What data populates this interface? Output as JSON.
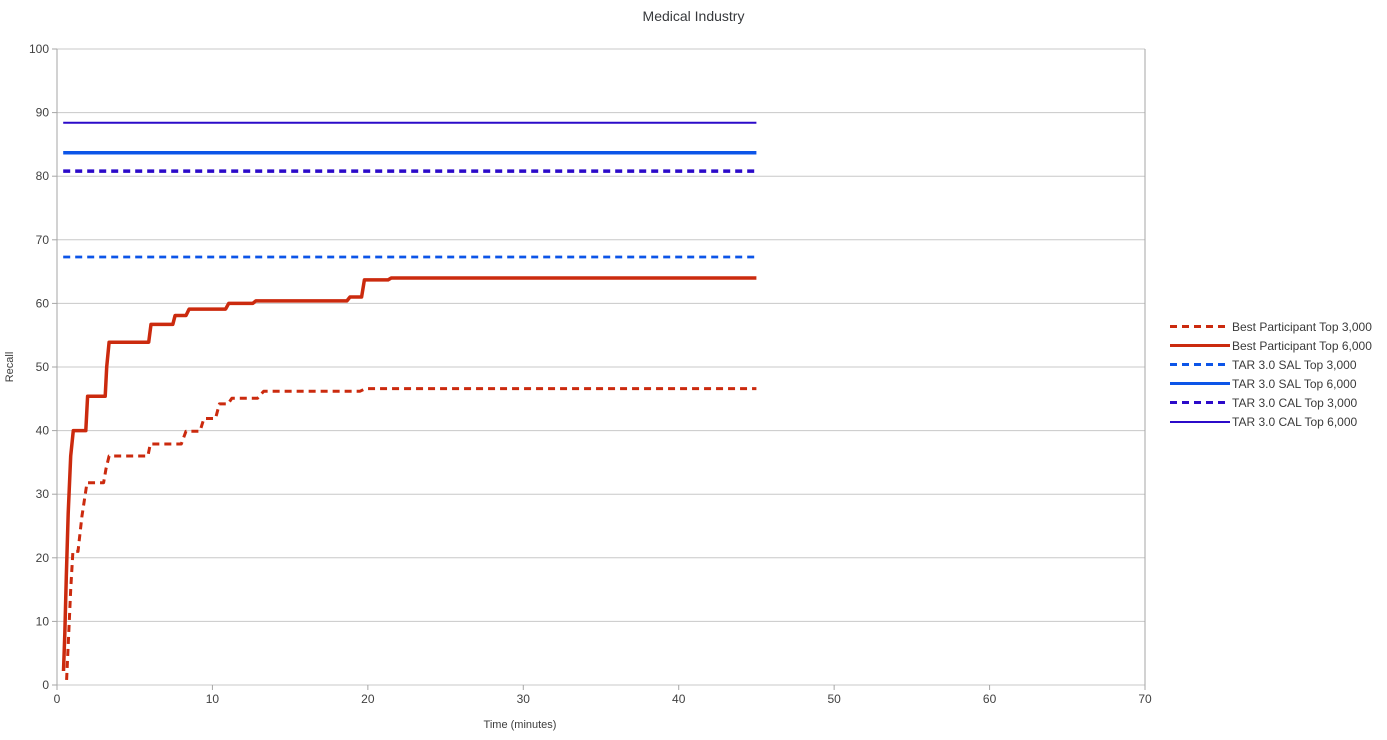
{
  "title": "Medical Industry",
  "axes": {
    "x": {
      "title": "Time (minutes)",
      "lim": [
        0,
        70
      ],
      "ticks": [
        0,
        10,
        20,
        30,
        40,
        50,
        60,
        70
      ]
    },
    "y": {
      "title": "Recall",
      "lim": [
        0,
        100
      ],
      "ticks": [
        0,
        10,
        20,
        30,
        40,
        50,
        60,
        70,
        80,
        90,
        100
      ]
    }
  },
  "colors": {
    "best_participant_red": "#CB2A0E",
    "tar_sal_blue": "#0C55E8",
    "tar_cal_indigo": "#2B0AC9",
    "gridline": "#C8C8C8",
    "axis": "#A6A6A6",
    "text": "#3C3C3C"
  },
  "chart_data": {
    "type": "line",
    "title": "Medical Industry",
    "xlabel": "Time (minutes)",
    "ylabel": "Recall",
    "xlim": [
      0,
      70
    ],
    "ylim": [
      0,
      100
    ],
    "grid": "horizontal",
    "legend_position": "right-middle",
    "series": [
      {
        "name": "Best Participant Top 3,000",
        "color": "#CB2A0E",
        "style": "dashed",
        "width": 3,
        "points": [
          [
            0.62,
            0.8
          ],
          [
            0.75,
            8
          ],
          [
            0.88,
            15
          ],
          [
            1.02,
            21
          ],
          [
            1.35,
            21
          ],
          [
            1.6,
            26.5
          ],
          [
            1.93,
            31.8
          ],
          [
            3.0,
            31.8
          ],
          [
            3.15,
            34
          ],
          [
            3.35,
            36
          ],
          [
            5.85,
            36
          ],
          [
            6.0,
            37.9
          ],
          [
            8.0,
            37.9
          ],
          [
            8.3,
            39.9
          ],
          [
            9.2,
            39.9
          ],
          [
            9.45,
            41.9
          ],
          [
            10.2,
            41.9
          ],
          [
            10.45,
            44.2
          ],
          [
            11.0,
            44.2
          ],
          [
            11.25,
            45.1
          ],
          [
            12.9,
            45.1
          ],
          [
            13.3,
            46.2
          ],
          [
            19.5,
            46.2
          ],
          [
            19.85,
            46.6
          ],
          [
            45,
            46.6
          ]
        ]
      },
      {
        "name": "Best Participant Top 6,000",
        "color": "#CB2A0E",
        "style": "solid",
        "width": 3.5,
        "points": [
          [
            0.42,
            2.2
          ],
          [
            0.5,
            8
          ],
          [
            0.6,
            17
          ],
          [
            0.72,
            27
          ],
          [
            0.88,
            36
          ],
          [
            1.05,
            40
          ],
          [
            1.85,
            40
          ],
          [
            1.97,
            45.4
          ],
          [
            3.1,
            45.4
          ],
          [
            3.2,
            50
          ],
          [
            3.35,
            53.9
          ],
          [
            5.9,
            53.9
          ],
          [
            6.05,
            56.7
          ],
          [
            7.45,
            56.7
          ],
          [
            7.6,
            58.1
          ],
          [
            8.3,
            58.1
          ],
          [
            8.5,
            59.1
          ],
          [
            10.85,
            59.1
          ],
          [
            11.05,
            60.0
          ],
          [
            12.6,
            60.0
          ],
          [
            12.8,
            60.4
          ],
          [
            18.65,
            60.4
          ],
          [
            18.85,
            61.0
          ],
          [
            19.6,
            61.0
          ],
          [
            19.78,
            63.7
          ],
          [
            21.3,
            63.7
          ],
          [
            21.5,
            64.0
          ],
          [
            45,
            64.0
          ]
        ]
      },
      {
        "name": "TAR 3.0 SAL Top 3,000",
        "color": "#0C55E8",
        "style": "dashed",
        "width": 2.8,
        "points": [
          [
            0.4,
            67.3
          ],
          [
            45,
            67.3
          ]
        ]
      },
      {
        "name": "TAR 3.0 SAL Top 6,000",
        "color": "#0C55E8",
        "style": "solid",
        "width": 3.5,
        "points": [
          [
            0.4,
            83.7
          ],
          [
            45,
            83.7
          ]
        ]
      },
      {
        "name": "TAR 3.0 CAL Top 3,000",
        "color": "#2B0AC9",
        "style": "dashed",
        "width": 3.5,
        "points": [
          [
            0.4,
            80.8
          ],
          [
            45,
            80.8
          ]
        ]
      },
      {
        "name": "TAR 3.0 CAL Top 6,000",
        "color": "#2B0AC9",
        "style": "solid",
        "width": 2,
        "points": [
          [
            0.4,
            88.4
          ],
          [
            45,
            88.4
          ]
        ]
      }
    ]
  }
}
